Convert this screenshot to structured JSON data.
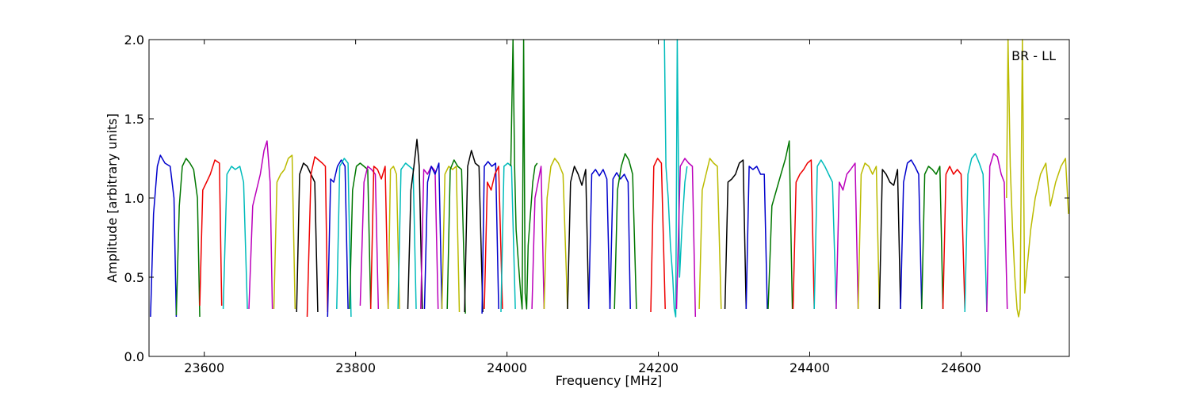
{
  "chart_data": {
    "type": "line",
    "title": "",
    "xlabel": "Frequency [MHz]",
    "ylabel": "Amplitude [arbitrary units]",
    "xlim": [
      23527,
      24743
    ],
    "ylim": [
      0.0,
      2.0
    ],
    "x_ticks": [
      23600,
      23800,
      24000,
      24200,
      24400,
      24600
    ],
    "y_ticks": [
      0.0,
      0.5,
      1.0,
      1.5,
      2.0
    ],
    "x_tick_labels": [
      "23600",
      "23800",
      "24000",
      "24200",
      "24400",
      "24600"
    ],
    "y_tick_labels": [
      "0.0",
      "0.5",
      "1.0",
      "1.5",
      "2.0"
    ],
    "annotation": "BR - LL",
    "grid": false,
    "series": [
      {
        "color": "#0000cc",
        "x": [
          23529,
          23533,
          23538,
          23542,
          23548,
          23555,
          23560,
          23563
        ],
        "y": [
          0.25,
          0.9,
          1.2,
          1.27,
          1.22,
          1.2,
          1.0,
          0.25
        ]
      },
      {
        "color": "#007700",
        "x": [
          23563,
          23567,
          23571,
          23576,
          23581,
          23586,
          23591,
          23594
        ],
        "y": [
          0.26,
          0.95,
          1.2,
          1.25,
          1.22,
          1.18,
          1.0,
          0.25
        ]
      },
      {
        "color": "#ee0000",
        "x": [
          23594,
          23598,
          23603,
          23608,
          23614,
          23620,
          23623
        ],
        "y": [
          0.32,
          1.05,
          1.1,
          1.15,
          1.24,
          1.22,
          0.32
        ]
      },
      {
        "color": "#00bbbb",
        "x": [
          23625,
          23630,
          23636,
          23641,
          23647,
          23652,
          23657
        ],
        "y": [
          0.3,
          1.15,
          1.2,
          1.18,
          1.2,
          1.1,
          0.3
        ]
      },
      {
        "color": "#bb00bb",
        "x": [
          23659,
          23664,
          23669,
          23674,
          23679,
          23683,
          23687,
          23690
        ],
        "y": [
          0.3,
          0.95,
          1.05,
          1.15,
          1.3,
          1.36,
          1.1,
          0.3
        ]
      },
      {
        "color": "#bbbb00",
        "x": [
          23692,
          23696,
          23701,
          23706,
          23711,
          23716,
          23720
        ],
        "y": [
          0.3,
          1.1,
          1.15,
          1.18,
          1.25,
          1.27,
          0.3
        ]
      },
      {
        "color": "#000000",
        "x": [
          23722,
          23726,
          23731,
          23736,
          23741,
          23746,
          23750
        ],
        "y": [
          0.28,
          1.15,
          1.22,
          1.2,
          1.15,
          1.1,
          0.28
        ]
      },
      {
        "color": "#ee0000",
        "x": [
          23736,
          23741,
          23746,
          23751,
          23756,
          23760,
          23763
        ],
        "y": [
          0.25,
          1.15,
          1.26,
          1.24,
          1.22,
          1.2,
          0.28
        ]
      },
      {
        "color": "#0000cc",
        "x": [
          23763,
          23767,
          23771,
          23776,
          23781,
          23786,
          23790
        ],
        "y": [
          0.25,
          1.12,
          1.1,
          1.2,
          1.24,
          1.2,
          0.3
        ]
      },
      {
        "color": "#00bbbb",
        "x": [
          23775,
          23779,
          23785,
          23790,
          23794
        ],
        "y": [
          0.3,
          1.2,
          1.25,
          1.22,
          0.25
        ]
      },
      {
        "color": "#007700",
        "x": [
          23792,
          23796,
          23801,
          23806,
          23811,
          23816,
          23820
        ],
        "y": [
          0.3,
          1.05,
          1.2,
          1.22,
          1.2,
          1.18,
          0.3
        ]
      },
      {
        "color": "#bb00bb",
        "x": [
          23806,
          23811,
          23816,
          23821,
          23826,
          23830
        ],
        "y": [
          0.32,
          1.1,
          1.2,
          1.18,
          1.15,
          0.3
        ]
      },
      {
        "color": "#ee0000",
        "x": [
          23820,
          23824,
          23829,
          23834,
          23839,
          23843
        ],
        "y": [
          0.3,
          1.2,
          1.18,
          1.12,
          1.2,
          0.3
        ]
      },
      {
        "color": "#bbbb00",
        "x": [
          23843,
          23846,
          23850,
          23854,
          23858
        ],
        "y": [
          0.3,
          1.18,
          1.2,
          1.15,
          0.3
        ]
      },
      {
        "color": "#00bbbb",
        "x": [
          23856,
          23860,
          23866,
          23871,
          23876,
          23880
        ],
        "y": [
          0.3,
          1.18,
          1.22,
          1.2,
          1.18,
          0.3
        ]
      },
      {
        "color": "#000000",
        "x": [
          23869,
          23873,
          23877,
          23881,
          23884,
          23888
        ],
        "y": [
          0.3,
          1.05,
          1.2,
          1.37,
          1.2,
          0.3
        ]
      },
      {
        "color": "#bb00bb",
        "x": [
          23886,
          23890,
          23895,
          23900,
          23905,
          23909
        ],
        "y": [
          0.3,
          1.18,
          1.15,
          1.2,
          1.17,
          0.3
        ]
      },
      {
        "color": "#0000cc",
        "x": [
          23891,
          23895,
          23900,
          23905,
          23910,
          23914
        ],
        "y": [
          0.3,
          1.1,
          1.2,
          1.15,
          1.22,
          0.3
        ]
      },
      {
        "color": "#bbbb00",
        "x": [
          23914,
          23918,
          23923,
          23928,
          23933,
          23937
        ],
        "y": [
          0.3,
          1.15,
          1.2,
          1.18,
          1.2,
          0.28
        ]
      },
      {
        "color": "#007700",
        "x": [
          23921,
          23925,
          23930,
          23935,
          23940,
          23945
        ],
        "y": [
          0.3,
          1.18,
          1.24,
          1.2,
          1.18,
          0.27
        ]
      },
      {
        "color": "#000000",
        "x": [
          23944,
          23948,
          23953,
          23958,
          23963,
          23968
        ],
        "y": [
          0.28,
          1.2,
          1.3,
          1.22,
          1.2,
          0.28
        ]
      },
      {
        "color": "#0000cc",
        "x": [
          23967,
          23970,
          23975,
          23980,
          23985,
          23989
        ],
        "y": [
          0.27,
          1.2,
          1.23,
          1.2,
          1.22,
          0.3
        ]
      },
      {
        "color": "#ee0000",
        "x": [
          23970,
          23974,
          23979,
          23984,
          23989,
          23994
        ],
        "y": [
          0.3,
          1.1,
          1.05,
          1.15,
          1.2,
          0.3
        ]
      },
      {
        "color": "#00bbbb",
        "x": [
          23992,
          23996,
          24001,
          24006,
          24011
        ],
        "y": [
          0.28,
          1.2,
          1.22,
          1.2,
          0.3
        ]
      },
      {
        "color": "#007700",
        "x": [
          24005,
          24008,
          24010,
          24012,
          24015,
          24018,
          24020,
          24022,
          24024,
          24026,
          24028,
          24031,
          24034,
          24037,
          24040
        ],
        "y": [
          1.2,
          2.0,
          1.2,
          0.8,
          0.6,
          0.4,
          0.3,
          2.0,
          0.4,
          0.3,
          0.7,
          0.9,
          1.1,
          1.2,
          1.22
        ]
      },
      {
        "color": "#bb00bb",
        "x": [
          24033,
          24037,
          24041,
          24045,
          24049
        ],
        "y": [
          0.3,
          1.0,
          1.1,
          1.2,
          0.3
        ]
      },
      {
        "color": "#bbbb00",
        "x": [
          24049,
          24053,
          24058,
          24063,
          24068,
          24074,
          24080
        ],
        "y": [
          0.3,
          1.0,
          1.2,
          1.25,
          1.22,
          1.15,
          0.3
        ]
      },
      {
        "color": "#000000",
        "x": [
          24080,
          24084,
          24089,
          24094,
          24099,
          24104,
          24108
        ],
        "y": [
          0.3,
          1.1,
          1.2,
          1.15,
          1.08,
          1.18,
          0.3
        ]
      },
      {
        "color": "#0000cc",
        "x": [
          24108,
          24112,
          24117,
          24122,
          24127,
          24132,
          24136
        ],
        "y": [
          0.3,
          1.15,
          1.18,
          1.14,
          1.18,
          1.12,
          0.3
        ]
      },
      {
        "color": "#0000cc",
        "x": [
          24136,
          24140,
          24145,
          24150,
          24155,
          24160,
          24163
        ],
        "y": [
          0.3,
          1.12,
          1.16,
          1.12,
          1.15,
          1.1,
          0.3
        ]
      },
      {
        "color": "#007700",
        "x": [
          24142,
          24146,
          24151,
          24156,
          24161,
          24166,
          24171
        ],
        "y": [
          0.3,
          1.05,
          1.2,
          1.28,
          1.24,
          1.15,
          0.3
        ]
      },
      {
        "color": "#ee0000",
        "x": [
          24190,
          24194,
          24199,
          24204,
          24209
        ],
        "y": [
          0.28,
          1.2,
          1.25,
          1.22,
          0.3
        ]
      },
      {
        "color": "#00bbbb",
        "x": [
          24208,
          24210,
          24213,
          24216,
          24219,
          24221,
          24223,
          24225,
          24228,
          24231,
          24235,
          24238
        ],
        "y": [
          2.0,
          1.2,
          1.0,
          0.7,
          0.5,
          0.3,
          0.25,
          2.0,
          0.5,
          0.8,
          1.1,
          1.2
        ]
      },
      {
        "color": "#bb00bb",
        "x": [
          24224,
          24229,
          24235,
          24240,
          24245,
          24249
        ],
        "y": [
          0.3,
          1.2,
          1.25,
          1.22,
          1.2,
          0.25
        ]
      },
      {
        "color": "#bbbb00",
        "x": [
          24254,
          24258,
          24263,
          24268,
          24273,
          24278,
          24283
        ],
        "y": [
          0.3,
          1.05,
          1.15,
          1.25,
          1.22,
          1.2,
          0.3
        ]
      },
      {
        "color": "#000000",
        "x": [
          24288,
          24292,
          24297,
          24302,
          24307,
          24312,
          24316
        ],
        "y": [
          0.3,
          1.1,
          1.12,
          1.15,
          1.22,
          1.24,
          0.3
        ]
      },
      {
        "color": "#0000cc",
        "x": [
          24316,
          24320,
          24325,
          24330,
          24335,
          24340,
          24344
        ],
        "y": [
          0.3,
          1.2,
          1.18,
          1.2,
          1.15,
          1.15,
          0.3
        ]
      },
      {
        "color": "#007700",
        "x": [
          24345,
          24350,
          24356,
          24362,
          24368,
          24373,
          24377
        ],
        "y": [
          0.3,
          0.95,
          1.05,
          1.15,
          1.25,
          1.36,
          0.3
        ]
      },
      {
        "color": "#ee0000",
        "x": [
          24378,
          24382,
          24387,
          24392,
          24397,
          24402,
          24406
        ],
        "y": [
          0.3,
          1.1,
          1.15,
          1.18,
          1.22,
          1.24,
          0.3
        ]
      },
      {
        "color": "#00bbbb",
        "x": [
          24406,
          24410,
          24415,
          24420,
          24425,
          24430,
          24435
        ],
        "y": [
          0.3,
          1.2,
          1.24,
          1.2,
          1.15,
          1.1,
          0.3
        ]
      },
      {
        "color": "#bb00bb",
        "x": [
          24435,
          24439,
          24444,
          24449,
          24454,
          24460,
          24464
        ],
        "y": [
          0.3,
          1.1,
          1.05,
          1.15,
          1.18,
          1.22,
          0.3
        ]
      },
      {
        "color": "#bbbb00",
        "x": [
          24464,
          24468,
          24473,
          24478,
          24483,
          24488,
          24492
        ],
        "y": [
          0.3,
          1.15,
          1.22,
          1.2,
          1.15,
          1.2,
          0.3
        ]
      },
      {
        "color": "#000000",
        "x": [
          24492,
          24496,
          24501,
          24506,
          24511,
          24516,
          24520
        ],
        "y": [
          0.3,
          1.18,
          1.15,
          1.1,
          1.08,
          1.18,
          0.3
        ]
      },
      {
        "color": "#0000cc",
        "x": [
          24520,
          24524,
          24529,
          24534,
          24539,
          24544,
          24548
        ],
        "y": [
          0.3,
          1.1,
          1.22,
          1.24,
          1.2,
          1.15,
          0.3
        ]
      },
      {
        "color": "#007700",
        "x": [
          24548,
          24552,
          24557,
          24562,
          24567,
          24572,
          24576
        ],
        "y": [
          0.3,
          1.15,
          1.2,
          1.18,
          1.15,
          1.2,
          0.3
        ]
      },
      {
        "color": "#ee0000",
        "x": [
          24576,
          24580,
          24585,
          24590,
          24595,
          24600,
          24605
        ],
        "y": [
          0.3,
          1.15,
          1.2,
          1.15,
          1.18,
          1.15,
          0.3
        ]
      },
      {
        "color": "#00bbbb",
        "x": [
          24605,
          24609,
          24614,
          24619,
          24624,
          24629,
          24634
        ],
        "y": [
          0.28,
          1.15,
          1.25,
          1.28,
          1.22,
          1.15,
          0.28
        ]
      },
      {
        "color": "#bb00bb",
        "x": [
          24634,
          24638,
          24643,
          24648,
          24653,
          24657,
          24661
        ],
        "y": [
          0.28,
          1.2,
          1.28,
          1.26,
          1.15,
          1.1,
          0.3
        ]
      },
      {
        "color": "#bbbb00",
        "x": [
          24660,
          24662,
          24665,
          24668,
          24671,
          24674,
          24676,
          24678,
          24681,
          24684,
          24688,
          24692,
          24698,
          24705,
          24712,
          24718,
          24725,
          24732,
          24738,
          24742
        ],
        "y": [
          1.0,
          2.0,
          1.2,
          0.8,
          0.5,
          0.3,
          0.25,
          0.3,
          2.0,
          0.4,
          0.6,
          0.8,
          1.0,
          1.15,
          1.22,
          0.95,
          1.1,
          1.2,
          1.25,
          0.9
        ]
      }
    ]
  }
}
